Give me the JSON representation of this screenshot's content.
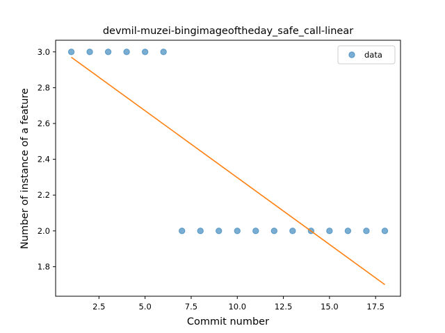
{
  "chart_data": {
    "type": "scatter",
    "title": "devmil-muzei-bingimageoftheday_safe_call-linear",
    "xlabel": "Commit number",
    "ylabel": "Number of instance of a feature",
    "xlim": [
      0.15,
      18.85
    ],
    "ylim": [
      1.635,
      3.065
    ],
    "xticks": [
      2.5,
      5.0,
      7.5,
      10.0,
      12.5,
      15.0,
      17.5
    ],
    "xtick_labels": [
      "2.5",
      "5.0",
      "7.5",
      "10.0",
      "12.5",
      "15.0",
      "17.5"
    ],
    "yticks": [
      1.8,
      2.0,
      2.2,
      2.4,
      2.6,
      2.8,
      3.0
    ],
    "ytick_labels": [
      "1.8",
      "2.0",
      "2.2",
      "2.4",
      "2.6",
      "2.8",
      "3.0"
    ],
    "grid": false,
    "legend_position": "upper right",
    "series": [
      {
        "name": "data",
        "kind": "scatter",
        "color": "#1f77b4",
        "x": [
          1,
          2,
          3,
          4,
          5,
          6,
          7,
          8,
          9,
          10,
          11,
          12,
          13,
          14,
          15,
          16,
          17,
          18
        ],
        "y": [
          3,
          3,
          3,
          3,
          3,
          3,
          2,
          2,
          2,
          2,
          2,
          2,
          2,
          2,
          2,
          2,
          2,
          2
        ]
      },
      {
        "kind": "line",
        "color": "#ff7f0e",
        "x": [
          1,
          18
        ],
        "y": [
          2.97,
          1.7
        ]
      }
    ]
  }
}
